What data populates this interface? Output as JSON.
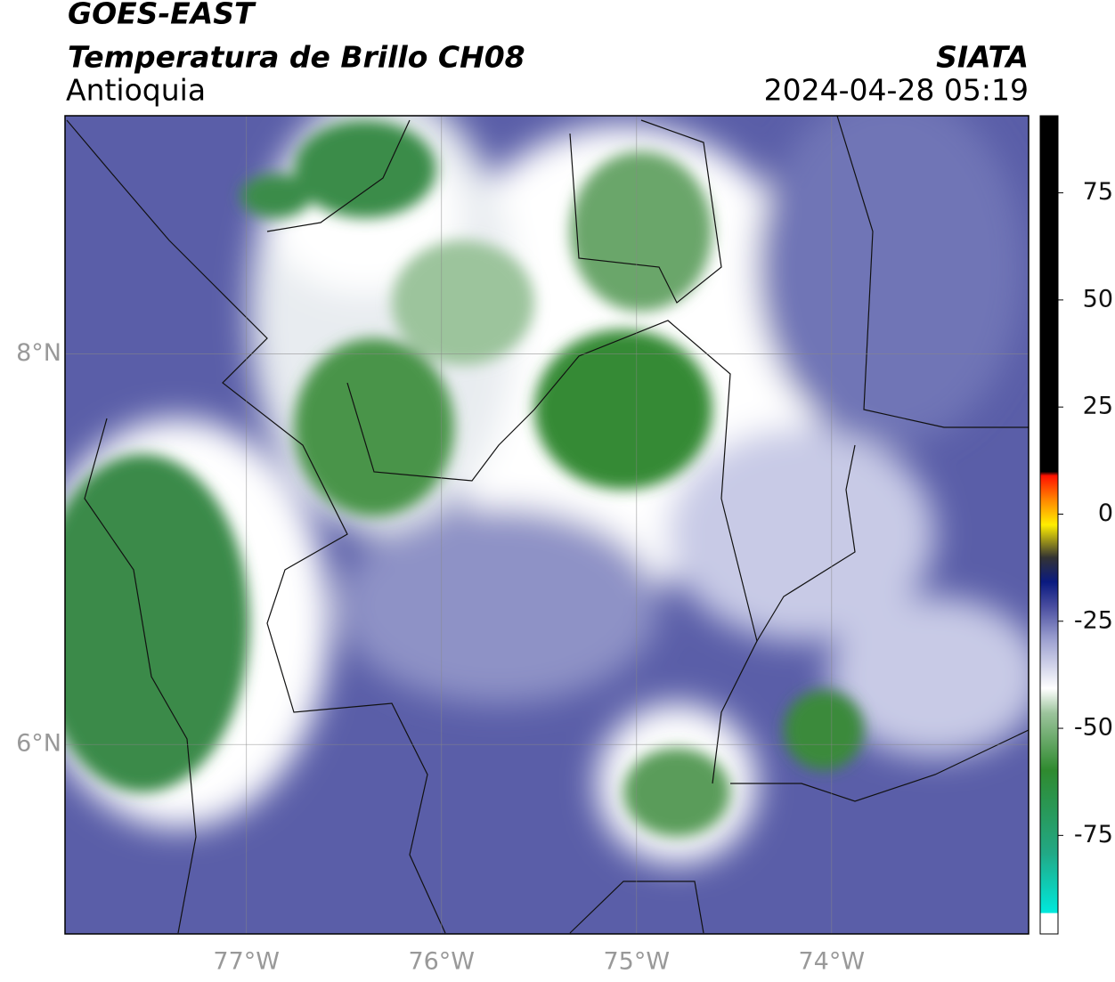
{
  "header": {
    "title": "GOES-EAST",
    "subtitle": "Temperatura de Brillo CH08",
    "region": "Antioquia",
    "source": "SIATA",
    "timestamp": "2024-04-28 05:19"
  },
  "map": {
    "lonlim": [
      -77.93,
      -72.99
    ],
    "latlim": [
      5.03,
      9.22
    ],
    "lon_ticks": [
      {
        "value": -77,
        "label": "77°W"
      },
      {
        "value": -76,
        "label": "76°W"
      },
      {
        "value": -75,
        "label": "75°W"
      },
      {
        "value": -74,
        "label": "74°W"
      }
    ],
    "lat_ticks": [
      {
        "value": 8,
        "label": "8°N"
      },
      {
        "value": 6,
        "label": "6°N"
      }
    ]
  },
  "colorbar": {
    "lim": [
      -98,
      93
    ],
    "ticks": [
      75,
      50,
      25,
      0,
      -25,
      -50,
      -75
    ]
  }
}
